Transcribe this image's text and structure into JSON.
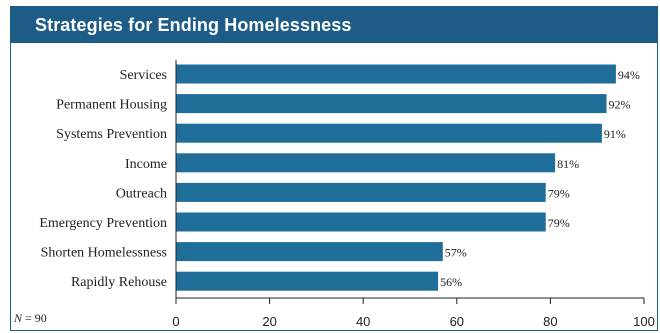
{
  "chart_data": {
    "type": "bar",
    "orientation": "horizontal",
    "title": "Strategies for Ending Homelessness",
    "categories": [
      "Services",
      "Permanent Housing",
      "Systems Prevention",
      "Income",
      "Outreach",
      "Emergency Prevention",
      "Shorten Homelessness",
      "Rapidly Rehouse"
    ],
    "values": [
      94,
      92,
      91,
      81,
      79,
      79,
      57,
      56
    ],
    "value_labels": [
      "94%",
      "92%",
      "91%",
      "81%",
      "79%",
      "79%",
      "57%",
      "56%"
    ],
    "xlim": [
      0,
      100
    ],
    "xticks": [
      0,
      20,
      40,
      60,
      80,
      100
    ],
    "xlabel": "",
    "ylabel": "",
    "grid": false,
    "bar_color": "#1f6e99",
    "note_label": "N",
    "note_value": "= 90"
  },
  "colors": {
    "header": "#1d5c86",
    "bar": "#1f6e99"
  }
}
